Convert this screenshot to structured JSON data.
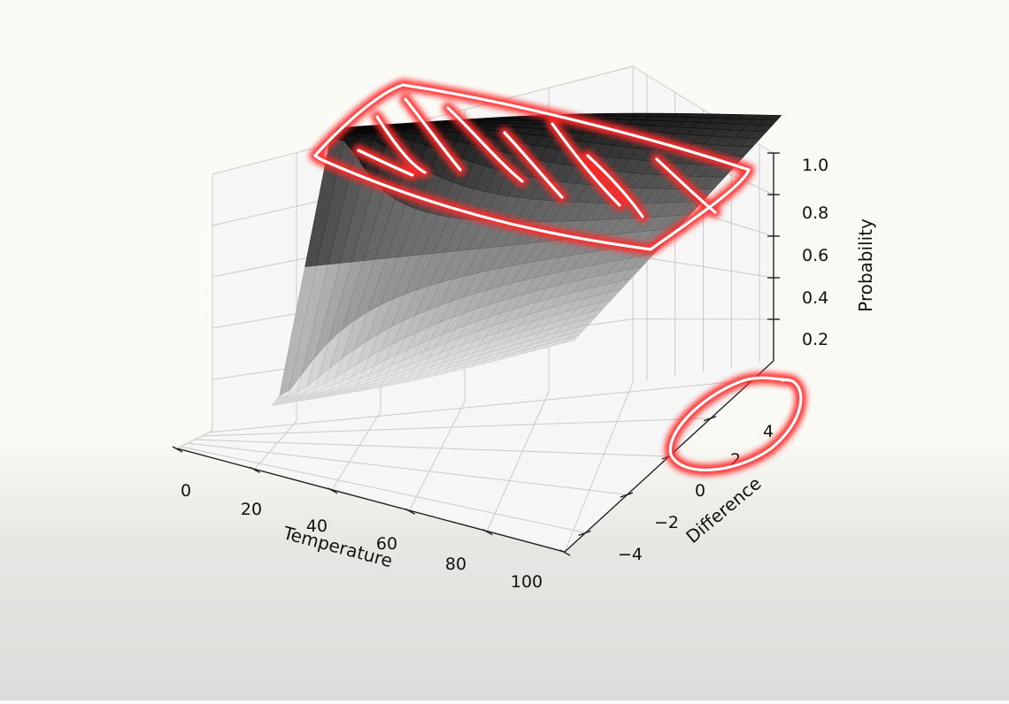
{
  "chart_data": {
    "type": "surface",
    "title": "",
    "xlabel": "Temperature",
    "ylabel": "Difference",
    "zlabel": "Probability",
    "xlim": [
      0,
      100
    ],
    "ylim": [
      -5,
      5
    ],
    "zlim": [
      0,
      1
    ],
    "x_ticks": [
      0,
      20,
      40,
      60,
      80,
      100
    ],
    "y_ticks": [
      -4,
      -2,
      0,
      2,
      4
    ],
    "z_ticks": [
      0.2,
      0.4,
      0.6,
      0.8,
      1.0
    ],
    "x_tick_labels": [
      "0",
      "20",
      "40",
      "60",
      "80",
      "100"
    ],
    "y_tick_labels": [
      "−4",
      "−2",
      "0",
      "2",
      "4"
    ],
    "z_tick_labels": [
      "0.2",
      "0.4",
      "0.6",
      "0.8",
      "1.0"
    ],
    "surface": "Probability = 1 / (1 + exp(-Difference / (Temperature / 50)))",
    "colormap": "greys",
    "grid": true
  },
  "annotations": {
    "stroke_color": "#ff0000",
    "glow_color": "#ff2a2a",
    "inner_color": "#ffffff"
  }
}
